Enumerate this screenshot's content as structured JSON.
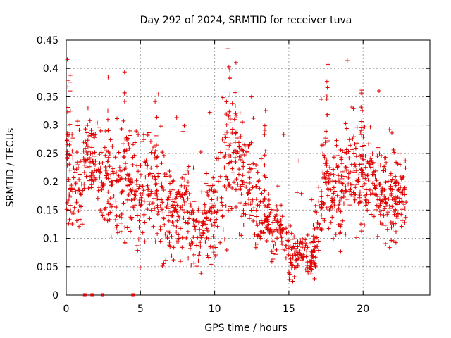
{
  "chart_data": {
    "type": "scatter",
    "title": "Day 292 of 2024, SRMTID for receiver tuva",
    "xlabel": "GPS time / hours",
    "ylabel": "SRMTID / TECUs",
    "xlim": [
      0,
      24.5
    ],
    "ylim": [
      0,
      0.45
    ],
    "xticks": [
      0,
      5,
      10,
      15,
      20
    ],
    "xtick_labels": [
      "0",
      "5",
      "10",
      "15",
      "20"
    ],
    "yticks": [
      0,
      0.05,
      0.1,
      0.15,
      0.2,
      0.25,
      0.3,
      0.35,
      0.4,
      0.45
    ],
    "ytick_labels": [
      "0",
      "0.05",
      "0.1",
      "0.15",
      "0.2",
      "0.25",
      "0.3",
      "0.35",
      "0.4",
      "0.45"
    ],
    "grid": true,
    "marker": "plus",
    "series_color": "#e00000",
    "zero_points_x": [
      1.25,
      1.75,
      2.45,
      4.5
    ],
    "profile": [
      [
        0.0,
        0.22,
        0.08
      ],
      [
        0.5,
        0.2,
        0.05
      ],
      [
        1.0,
        0.18,
        0.04
      ],
      [
        1.3,
        0.24,
        0.04
      ],
      [
        2.0,
        0.22,
        0.05
      ],
      [
        2.6,
        0.2,
        0.05
      ],
      [
        3.0,
        0.19,
        0.05
      ],
      [
        3.5,
        0.17,
        0.05
      ],
      [
        4.0,
        0.2,
        0.06
      ],
      [
        4.5,
        0.18,
        0.05
      ],
      [
        5.0,
        0.19,
        0.06
      ],
      [
        5.5,
        0.2,
        0.06
      ],
      [
        6.0,
        0.18,
        0.06
      ],
      [
        6.5,
        0.17,
        0.05
      ],
      [
        7.0,
        0.15,
        0.04
      ],
      [
        7.5,
        0.14,
        0.04
      ],
      [
        8.0,
        0.16,
        0.04
      ],
      [
        8.5,
        0.12,
        0.04
      ],
      [
        9.0,
        0.1,
        0.04
      ],
      [
        9.5,
        0.14,
        0.04
      ],
      [
        10.0,
        0.16,
        0.05
      ],
      [
        10.5,
        0.2,
        0.06
      ],
      [
        11.0,
        0.24,
        0.07
      ],
      [
        11.5,
        0.22,
        0.06
      ],
      [
        12.0,
        0.2,
        0.05
      ],
      [
        12.5,
        0.18,
        0.05
      ],
      [
        13.0,
        0.15,
        0.04
      ],
      [
        13.5,
        0.13,
        0.03
      ],
      [
        14.0,
        0.12,
        0.03
      ],
      [
        14.5,
        0.12,
        0.03
      ],
      [
        15.0,
        0.08,
        0.025
      ],
      [
        15.5,
        0.07,
        0.02
      ],
      [
        16.0,
        0.07,
        0.02
      ],
      [
        16.5,
        0.05,
        0.02
      ],
      [
        17.0,
        0.12,
        0.04
      ],
      [
        17.5,
        0.22,
        0.04
      ],
      [
        18.0,
        0.17,
        0.04
      ],
      [
        18.5,
        0.19,
        0.05
      ],
      [
        19.0,
        0.21,
        0.05
      ],
      [
        19.5,
        0.22,
        0.05
      ],
      [
        20.0,
        0.2,
        0.05
      ],
      [
        20.5,
        0.2,
        0.04
      ],
      [
        21.0,
        0.19,
        0.04
      ],
      [
        21.5,
        0.17,
        0.04
      ],
      [
        22.0,
        0.16,
        0.04
      ],
      [
        22.5,
        0.17,
        0.03
      ],
      [
        22.9,
        0.18,
        0.03
      ]
    ]
  }
}
